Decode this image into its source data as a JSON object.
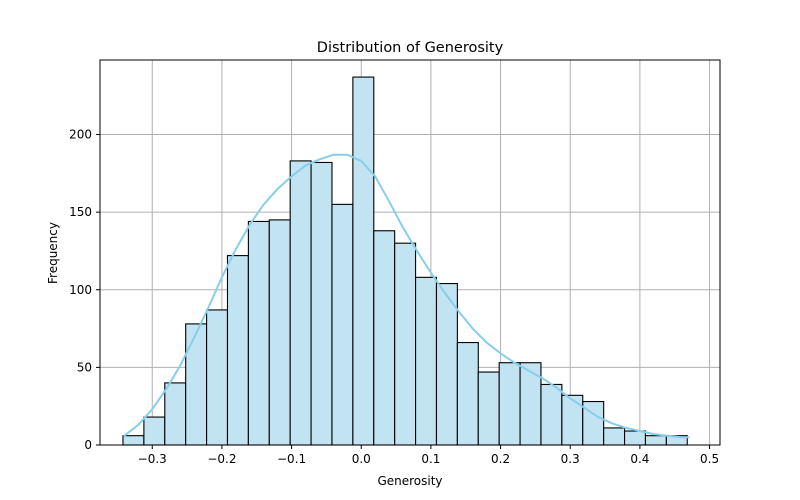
{
  "chart_data": {
    "type": "bar",
    "title": "Distribution of Generosity",
    "xlabel": "Generosity",
    "ylabel": "Frequency",
    "xlim": [
      -0.375,
      0.515
    ],
    "ylim": [
      0,
      248
    ],
    "xticks": [
      -0.3,
      -0.2,
      -0.1,
      0.0,
      0.1,
      0.2,
      0.3,
      0.4,
      0.5
    ],
    "xtick_labels": [
      "−0.3",
      "−0.2",
      "−0.1",
      "0.0",
      "0.1",
      "0.2",
      "0.3",
      "0.4",
      "0.5"
    ],
    "yticks": [
      0,
      50,
      100,
      150,
      200
    ],
    "ytick_labels": [
      "0",
      "50",
      "100",
      "150",
      "200"
    ],
    "grid": true,
    "bar_color": "#c2e3f2",
    "bar_edge_color": "#000000",
    "kde_color": "#87ceeb",
    "bin_edges": [
      -0.342,
      -0.312,
      -0.282,
      -0.252,
      -0.222,
      -0.192,
      -0.162,
      -0.132,
      -0.102,
      -0.072,
      -0.042,
      -0.012,
      0.018,
      0.048,
      0.078,
      0.108,
      0.138,
      0.168,
      0.198,
      0.228,
      0.258,
      0.288,
      0.318,
      0.348,
      0.378,
      0.408,
      0.438,
      0.468
    ],
    "values": [
      6,
      18,
      40,
      78,
      87,
      122,
      144,
      145,
      183,
      182,
      155,
      237,
      138,
      130,
      108,
      104,
      66,
      47,
      53,
      53,
      39,
      32,
      28,
      11,
      9,
      6,
      6
    ],
    "kde_x": [
      -0.34,
      -0.32,
      -0.3,
      -0.28,
      -0.26,
      -0.24,
      -0.22,
      -0.2,
      -0.18,
      -0.16,
      -0.14,
      -0.12,
      -0.1,
      -0.08,
      -0.06,
      -0.04,
      -0.02,
      0.0,
      0.02,
      0.04,
      0.06,
      0.08,
      0.1,
      0.12,
      0.14,
      0.16,
      0.18,
      0.2,
      0.22,
      0.24,
      0.26,
      0.28,
      0.3,
      0.32,
      0.34,
      0.36,
      0.38,
      0.4,
      0.42,
      0.44,
      0.46,
      0.47
    ],
    "kde_y": [
      6,
      13,
      23,
      36,
      51,
      69,
      88,
      108,
      126,
      142,
      155,
      165,
      173,
      180,
      184,
      187,
      187,
      183,
      173,
      157,
      140,
      125,
      111,
      98,
      86,
      75,
      66,
      59,
      53,
      48,
      43,
      37,
      30,
      24,
      18,
      14,
      11,
      9,
      7,
      6,
      5,
      5
    ]
  }
}
